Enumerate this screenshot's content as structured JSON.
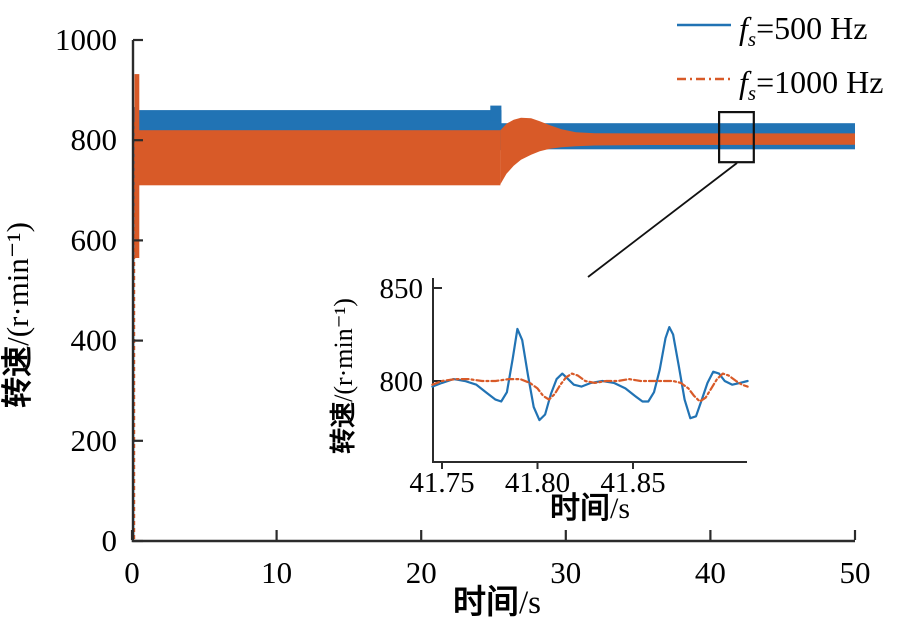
{
  "legend": {
    "items": [
      {
        "f": "f",
        "sub": "s",
        "rest": "=500 Hz",
        "color": "#2173b4",
        "style": "solid"
      },
      {
        "f": "f",
        "sub": "s",
        "rest": "=1000 Hz",
        "color": "#d85a28",
        "style": "dashdot"
      }
    ]
  },
  "chart_data": {
    "type": "line",
    "title": "",
    "main": {
      "xlabel_cn": "时间",
      "xlabel_unit": "/s",
      "ylabel_cn": "转速",
      "ylabel_unit": "/(r·min⁻¹)",
      "xlim": [
        0,
        50
      ],
      "ylim": [
        0,
        1000
      ],
      "xticks": [
        0,
        10,
        20,
        30,
        40,
        50
      ],
      "xtick_labels": [
        "0",
        "10",
        "20",
        "30",
        "40",
        "50"
      ],
      "yticks": [
        0,
        200,
        400,
        600,
        800,
        1000
      ],
      "ytick_labels": [
        "0",
        "200",
        "400",
        "600",
        "800",
        "1000"
      ],
      "grid": false,
      "series": [
        {
          "name": "fs=500 Hz",
          "color": "#2173b4",
          "style": "solid",
          "description": "dense speed-ripple band, step change near t=25.5 s",
          "bands": [
            {
              "t": [
                0.15,
                25.55
              ],
              "v": [
                780,
                860
              ]
            },
            {
              "t": [
                24.78,
                25.55
              ],
              "v": [
                840,
                869
              ]
            },
            {
              "t": [
                25.55,
                50
              ],
              "v": [
                782,
                834
              ]
            }
          ],
          "startup_band": {
            "t": [
              0.08,
              0.4
            ],
            "v": [
              660,
              866
            ]
          },
          "riser_t": 0.1
        },
        {
          "name": "fs=1000 Hz",
          "color": "#d85a28",
          "style": "dashdot",
          "description": "wide ripple band 710-820 until t=25.5 s, converges to 790-814",
          "bands": [
            {
              "t": [
                0.3,
                25.48
              ],
              "v": [
                710,
                820
              ]
            }
          ],
          "startup_band": {
            "t": [
              0.17,
              0.5
            ],
            "v": [
              565,
              932
            ]
          },
          "riser_t": 0.16,
          "envelope_top": [
            [
              25.48,
              820
            ],
            [
              25.9,
              833
            ],
            [
              26.4,
              841
            ],
            [
              26.9,
              845
            ],
            [
              27.6,
              844
            ],
            [
              28.2,
              838
            ],
            [
              28.9,
              830
            ],
            [
              29.7,
              822
            ],
            [
              30.7,
              816
            ],
            [
              32,
              814
            ],
            [
              36,
              813.5
            ],
            [
              50,
              813.5
            ]
          ],
          "envelope_bottom": [
            [
              25.48,
              712
            ],
            [
              25.9,
              733
            ],
            [
              26.4,
              749
            ],
            [
              26.9,
              761
            ],
            [
              27.6,
              771
            ],
            [
              28.2,
              778
            ],
            [
              28.9,
              783
            ],
            [
              29.7,
              786
            ],
            [
              30.7,
              788
            ],
            [
              32,
              789.5
            ],
            [
              36,
              790.5
            ],
            [
              50,
              791
            ]
          ]
        }
      ],
      "zoom_box": {
        "t": [
          40.6,
          43.0
        ],
        "v": [
          756,
          856
        ]
      }
    },
    "inset": {
      "xlabel_cn": "时间",
      "xlabel_unit": "/s",
      "ylabel_cn": "转速",
      "ylabel_unit": "/(r·min⁻¹)",
      "xlim": [
        41.745,
        41.91
      ],
      "ylim": [
        757,
        855
      ],
      "xticks": [
        41.75,
        41.8,
        41.85
      ],
      "xtick_labels": [
        "41.75",
        "41.80",
        "41.85"
      ],
      "yticks": [
        800,
        850
      ],
      "ytick_labels": [
        "800",
        "850"
      ],
      "grid": false,
      "series": [
        {
          "name": "fs=500 Hz",
          "color": "#2173b4",
          "style": "solid",
          "points": [
            [
              41.745,
              797
            ],
            [
              41.75,
              799
            ],
            [
              41.756,
              801
            ],
            [
              41.762,
              800
            ],
            [
              41.768,
              798
            ],
            [
              41.773,
              794
            ],
            [
              41.778,
              790
            ],
            [
              41.781,
              789
            ],
            [
              41.784,
              794
            ],
            [
              41.787,
              812
            ],
            [
              41.7895,
              828
            ],
            [
              41.792,
              822
            ],
            [
              41.795,
              803
            ],
            [
              41.798,
              786
            ],
            [
              41.801,
              779
            ],
            [
              41.804,
              782
            ],
            [
              41.807,
              793
            ],
            [
              41.81,
              801
            ],
            [
              41.813,
              804
            ],
            [
              41.816,
              801
            ],
            [
              41.819,
              798
            ],
            [
              41.823,
              797
            ],
            [
              41.828,
              799
            ],
            [
              41.834,
              800
            ],
            [
              41.84,
              799
            ],
            [
              41.846,
              796
            ],
            [
              41.851,
              792
            ],
            [
              41.855,
              789
            ],
            [
              41.858,
              789
            ],
            [
              41.861,
              794
            ],
            [
              41.864,
              806
            ],
            [
              41.867,
              823
            ],
            [
              41.869,
              829
            ],
            [
              41.871,
              825
            ],
            [
              41.874,
              808
            ],
            [
              41.877,
              790
            ],
            [
              41.88,
              780
            ],
            [
              41.883,
              781
            ],
            [
              41.886,
              790
            ],
            [
              41.889,
              799
            ],
            [
              41.892,
              805
            ],
            [
              41.895,
              804
            ],
            [
              41.898,
              800
            ],
            [
              41.902,
              798
            ],
            [
              41.906,
              799
            ],
            [
              41.91,
              800
            ]
          ]
        },
        {
          "name": "fs=1000 Hz",
          "color": "#d85a28",
          "style": "dashdot",
          "points": [
            [
              41.745,
              798
            ],
            [
              41.75,
              800
            ],
            [
              41.757,
              801
            ],
            [
              41.764,
              801
            ],
            [
              41.771,
              800
            ],
            [
              41.778,
              800
            ],
            [
              41.785,
              801
            ],
            [
              41.791,
              801
            ],
            [
              41.796,
              799
            ],
            [
              41.8,
              796
            ],
            [
              41.803,
              792
            ],
            [
              41.806,
              790
            ],
            [
              41.809,
              793
            ],
            [
              41.812,
              798
            ],
            [
              41.815,
              802
            ],
            [
              41.818,
              804
            ],
            [
              41.821,
              803
            ],
            [
              41.825,
              800
            ],
            [
              41.83,
              799
            ],
            [
              41.836,
              800
            ],
            [
              41.842,
              800
            ],
            [
              41.848,
              801
            ],
            [
              41.854,
              800
            ],
            [
              41.86,
              800
            ],
            [
              41.866,
              800
            ],
            [
              41.871,
              800
            ],
            [
              41.875,
              799
            ],
            [
              41.879,
              796
            ],
            [
              41.882,
              792
            ],
            [
              41.885,
              789
            ],
            [
              41.888,
              791
            ],
            [
              41.891,
              796
            ],
            [
              41.894,
              801
            ],
            [
              41.897,
              804
            ],
            [
              41.9,
              803
            ],
            [
              41.904,
              800
            ],
            [
              41.907,
              798
            ],
            [
              41.91,
              797
            ]
          ]
        }
      ]
    }
  }
}
